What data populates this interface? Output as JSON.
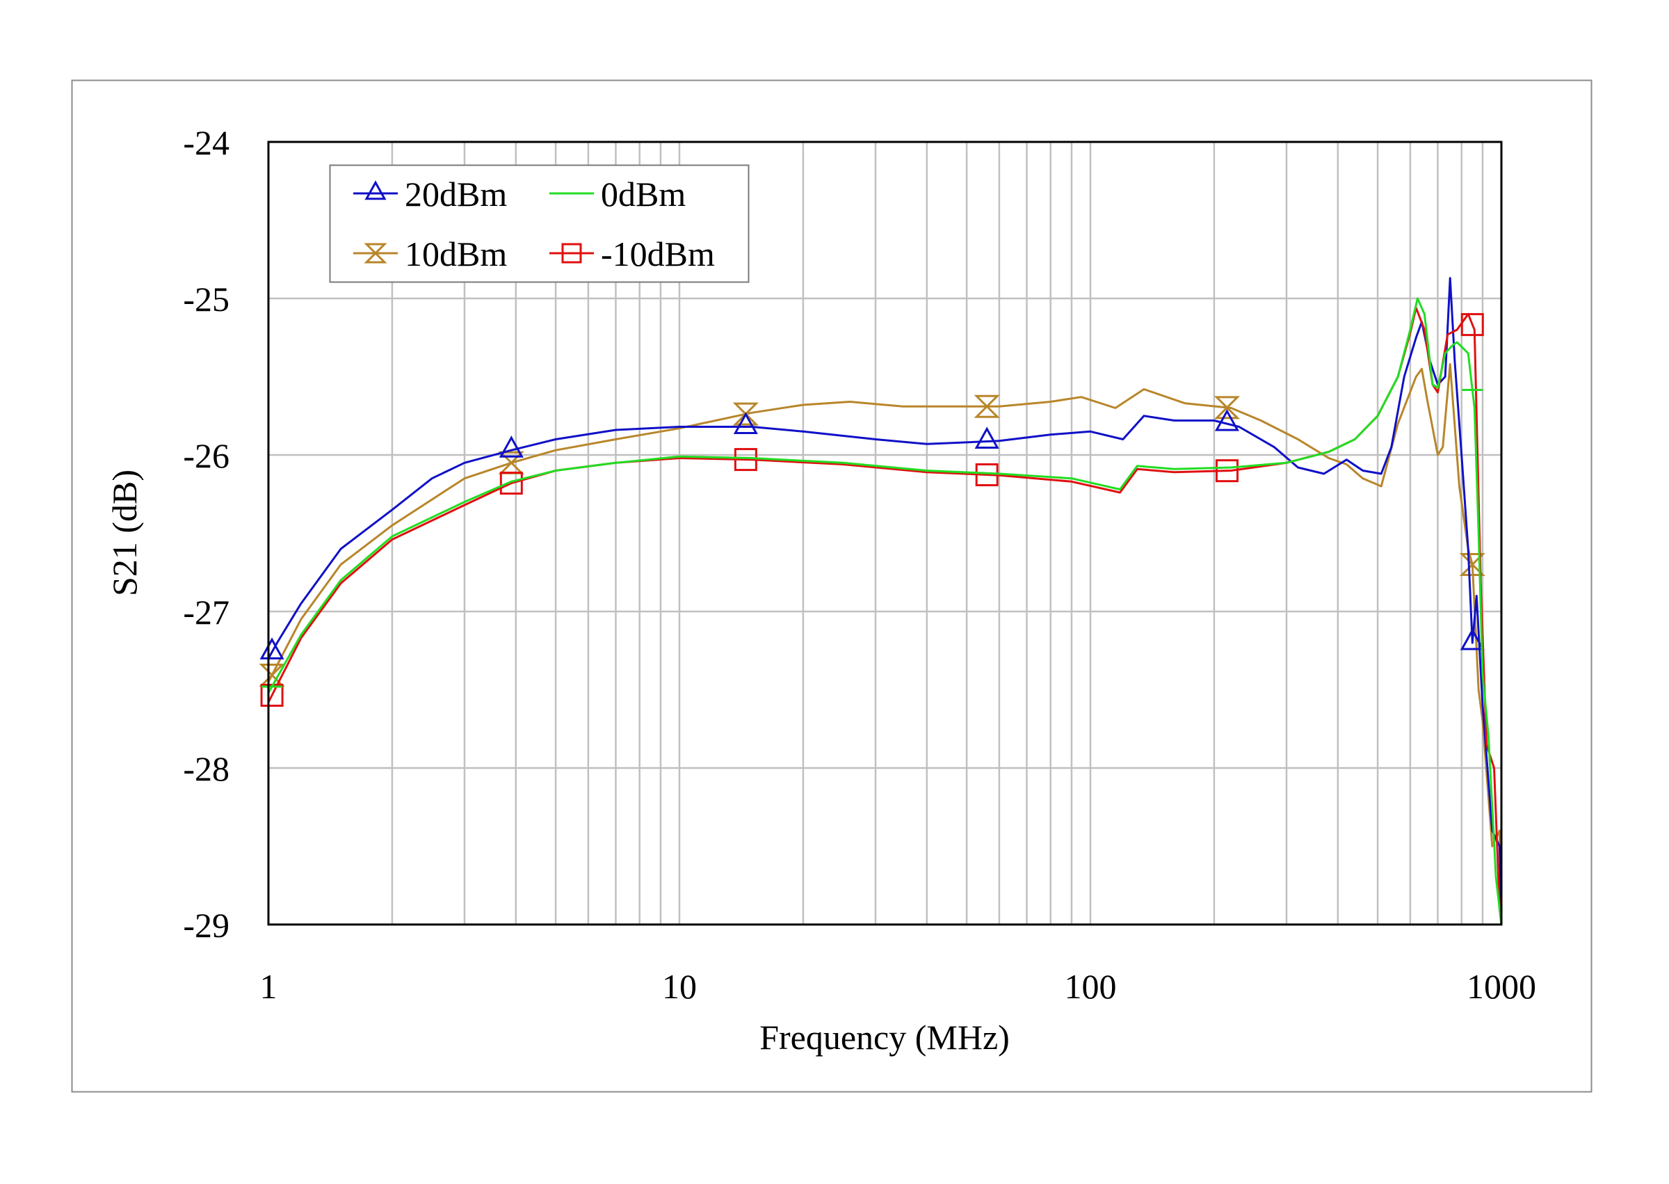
{
  "chart_data": {
    "type": "line",
    "title": "",
    "xlabel": "Frequency (MHz)",
    "ylabel": "S21 (dB)",
    "xscale": "log",
    "xlim": [
      1,
      1000
    ],
    "ylim": [
      -29,
      -24
    ],
    "xticks": [
      1,
      10,
      100,
      1000
    ],
    "xtick_labels": [
      "1",
      "10",
      "100",
      "1000"
    ],
    "yticks": [
      -24,
      -25,
      -26,
      -27,
      -28,
      -29
    ],
    "ytick_labels": [
      "-24",
      "-25",
      "-26",
      "-27",
      "-28",
      "-29"
    ],
    "grid": true,
    "legend_position": "upper-left (inside)",
    "series": [
      {
        "name": "20dBm",
        "color": "#1010C8",
        "marker": "triangle-up",
        "marker_x": [
          1.02,
          3.9,
          14.5,
          56,
          215,
          850
        ],
        "x": [
          1,
          1.05,
          1.2,
          1.5,
          2,
          2.5,
          3,
          3.9,
          5,
          7,
          10,
          15,
          20,
          30,
          40,
          60,
          80,
          100,
          120,
          135,
          160,
          200,
          230,
          280,
          320,
          370,
          420,
          460,
          510,
          540,
          580,
          620,
          640,
          670,
          700,
          730,
          750,
          770,
          800,
          830,
          850,
          870,
          900,
          950,
          990,
          1000
        ],
        "y": [
          -27.3,
          -27.2,
          -26.95,
          -26.6,
          -26.35,
          -26.15,
          -26.05,
          -25.97,
          -25.9,
          -25.84,
          -25.82,
          -25.82,
          -25.85,
          -25.9,
          -25.93,
          -25.91,
          -25.87,
          -25.85,
          -25.9,
          -25.75,
          -25.78,
          -25.78,
          -25.82,
          -25.95,
          -26.08,
          -26.12,
          -26.03,
          -26.1,
          -26.12,
          -25.95,
          -25.5,
          -25.25,
          -25.15,
          -25.4,
          -25.55,
          -25.5,
          -24.87,
          -25.4,
          -26.0,
          -26.6,
          -27.2,
          -26.9,
          -27.6,
          -28.4,
          -28.5,
          -29.0
        ]
      },
      {
        "name": "0dBm",
        "color": "#22DD22",
        "marker": "dash",
        "marker_x": [
          1.02,
          850
        ],
        "x": [
          1,
          1.2,
          1.5,
          2,
          3,
          3.9,
          5,
          7,
          10,
          15,
          25,
          40,
          60,
          90,
          118,
          130,
          160,
          220,
          300,
          380,
          440,
          500,
          560,
          600,
          625,
          650,
          680,
          700,
          730,
          760,
          780,
          830,
          860,
          880,
          900,
          930,
          970,
          1000
        ],
        "y": [
          -27.52,
          -27.15,
          -26.8,
          -26.52,
          -26.3,
          -26.17,
          -26.1,
          -26.05,
          -26.01,
          -26.02,
          -26.05,
          -26.1,
          -26.12,
          -26.15,
          -26.22,
          -26.07,
          -26.09,
          -26.08,
          -26.05,
          -25.98,
          -25.9,
          -25.75,
          -25.5,
          -25.2,
          -25.0,
          -25.1,
          -25.55,
          -25.57,
          -25.35,
          -25.3,
          -25.28,
          -25.35,
          -25.7,
          -26.5,
          -27.4,
          -27.8,
          -28.7,
          -29.0
        ]
      },
      {
        "name": "10dBm",
        "color": "#B8862A",
        "marker": "hourglass",
        "marker_x": [
          1.02,
          3.9,
          14.5,
          56,
          215,
          850
        ],
        "x": [
          1,
          1.2,
          1.5,
          2,
          3,
          3.9,
          5,
          7,
          10,
          15,
          20,
          26,
          35,
          60,
          80,
          95,
          115,
          135,
          170,
          220,
          260,
          320,
          380,
          420,
          460,
          510,
          560,
          620,
          640,
          660,
          700,
          720,
          750,
          790,
          830,
          850,
          880,
          900,
          950,
          990,
          1000
        ],
        "y": [
          -27.45,
          -27.05,
          -26.7,
          -26.45,
          -26.15,
          -26.05,
          -25.97,
          -25.9,
          -25.83,
          -25.73,
          -25.68,
          -25.66,
          -25.69,
          -25.69,
          -25.66,
          -25.63,
          -25.7,
          -25.58,
          -25.67,
          -25.7,
          -25.78,
          -25.9,
          -26.02,
          -26.06,
          -26.15,
          -26.2,
          -25.8,
          -25.5,
          -25.45,
          -25.65,
          -26.0,
          -25.95,
          -25.42,
          -26.2,
          -26.6,
          -26.7,
          -27.5,
          -27.7,
          -28.5,
          -28.4,
          -29.0
        ]
      },
      {
        "name": "-10dBm",
        "color": "#E01010",
        "marker": "square",
        "marker_x": [
          1.02,
          3.9,
          14.5,
          56,
          215,
          850
        ],
        "x": [
          1,
          1.2,
          1.5,
          2,
          3,
          3.9,
          5,
          7,
          10,
          15,
          25,
          40,
          60,
          90,
          118,
          130,
          160,
          220,
          300,
          380,
          440,
          500,
          560,
          600,
          620,
          650,
          680,
          700,
          740,
          780,
          830,
          860,
          890,
          920,
          960,
          990,
          1000
        ],
        "y": [
          -27.58,
          -27.17,
          -26.82,
          -26.54,
          -26.32,
          -26.18,
          -26.1,
          -26.05,
          -26.02,
          -26.03,
          -26.06,
          -26.11,
          -26.13,
          -26.17,
          -26.24,
          -26.09,
          -26.11,
          -26.1,
          -26.05,
          -25.98,
          -25.9,
          -25.75,
          -25.5,
          -25.22,
          -25.06,
          -25.2,
          -25.55,
          -25.6,
          -25.23,
          -25.2,
          -25.1,
          -25.2,
          -26.8,
          -27.85,
          -28.0,
          -28.9,
          -29.0
        ]
      }
    ]
  },
  "legend": {
    "items": [
      {
        "label": "20dBm",
        "color": "#1010C8",
        "marker": "triangle-up"
      },
      {
        "label": "0dBm",
        "color": "#22DD22",
        "marker": "none"
      },
      {
        "label": "10dBm",
        "color": "#B8862A",
        "marker": "hourglass"
      },
      {
        "label": "-10dBm",
        "color": "#E01010",
        "marker": "square"
      }
    ]
  },
  "axes": {
    "x_label": "Frequency (MHz)",
    "y_label": "S21 (dB)"
  }
}
